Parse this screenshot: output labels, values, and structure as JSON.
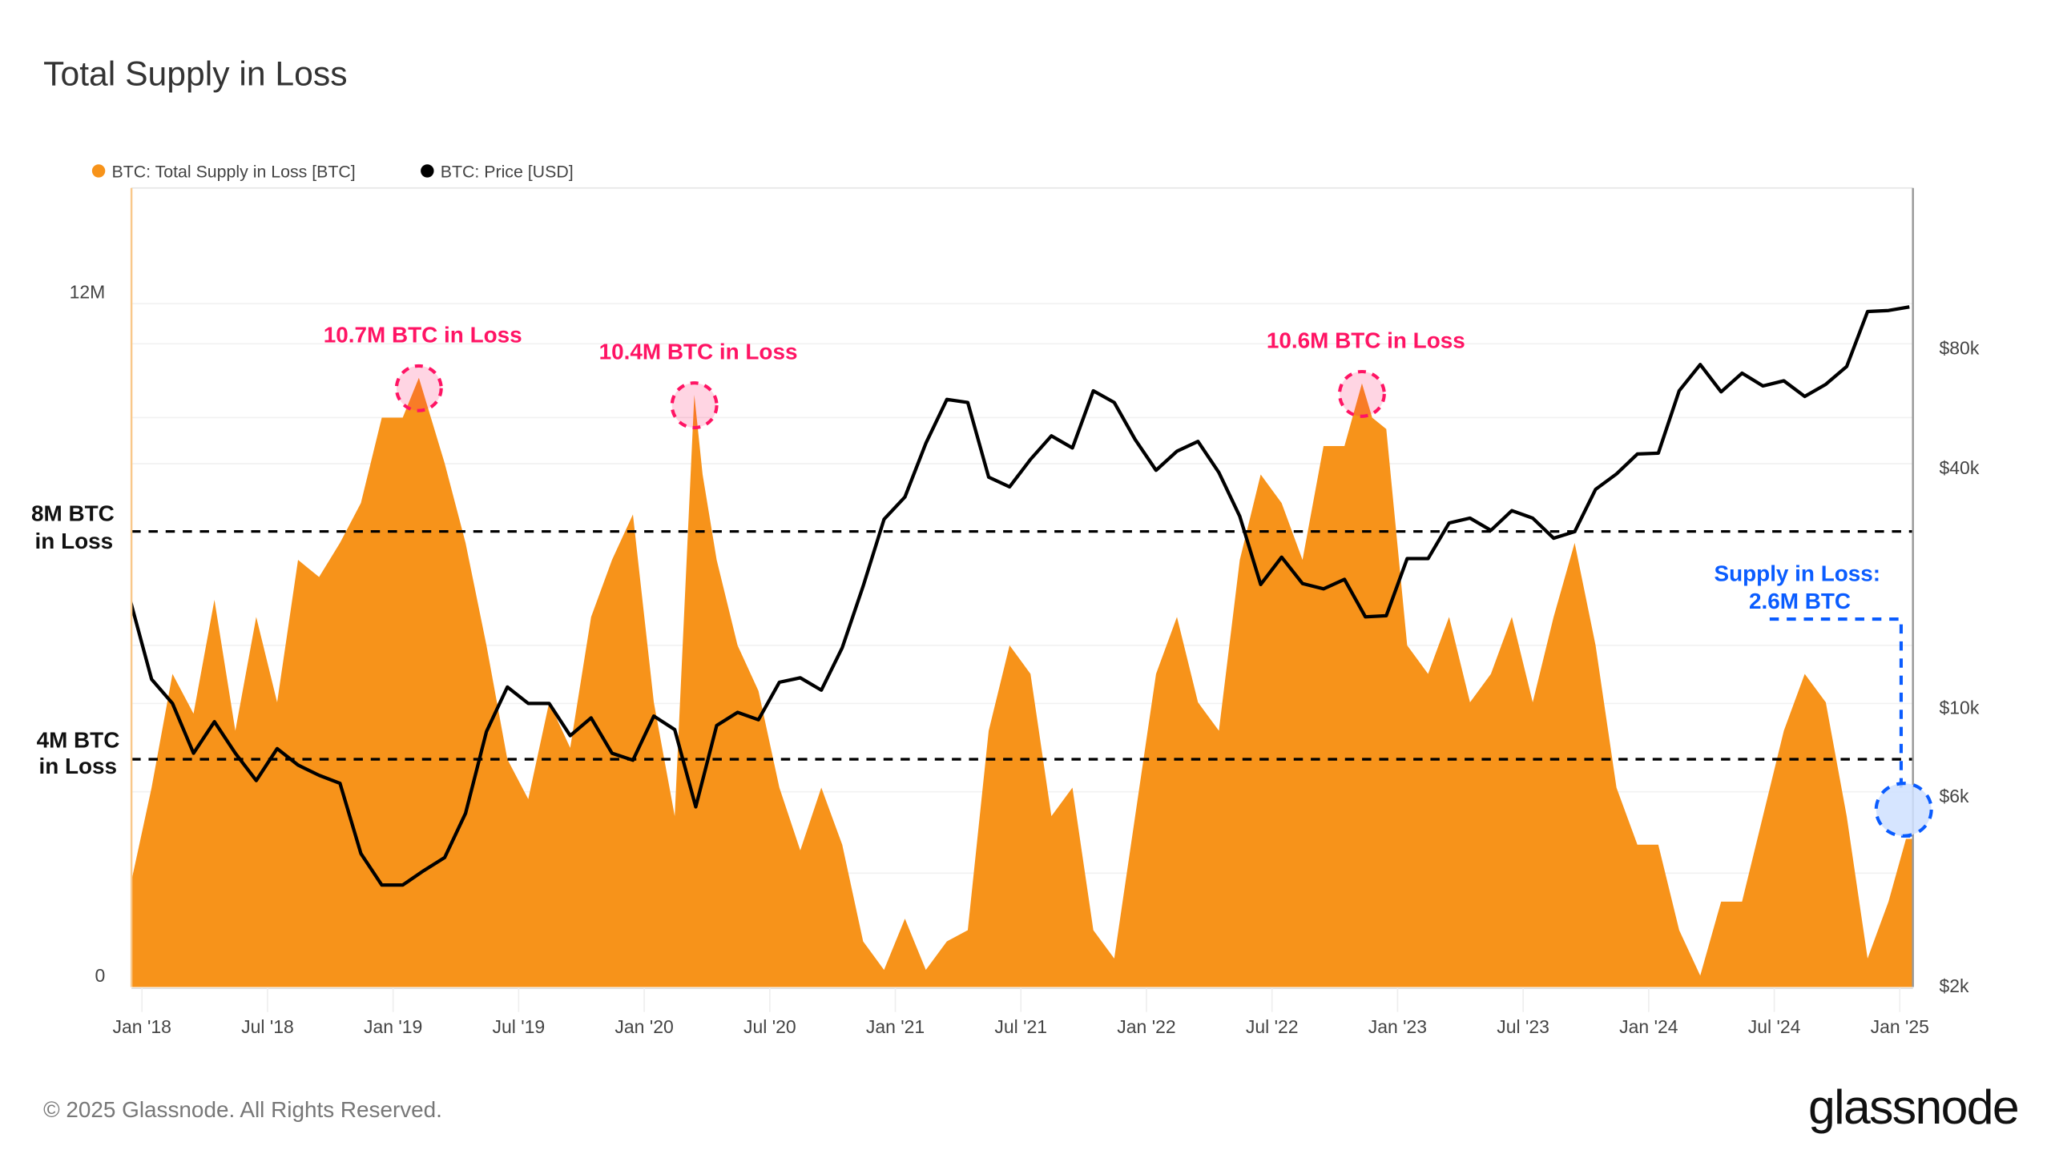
{
  "title": "Total Supply in Loss",
  "legend": [
    {
      "label": "BTC: Total Supply in Loss [BTC]",
      "color": "#f7931a"
    },
    {
      "label": "BTC: Price [USD]",
      "color": "#000000"
    }
  ],
  "annotations": {
    "threshold_8m": {
      "line1": "8M BTC",
      "line2": "in Loss",
      "value": 8
    },
    "threshold_4m": {
      "line1": "4M BTC",
      "line2": "in Loss",
      "value": 4
    },
    "peaks": [
      {
        "label": "10.7M BTC in Loss",
        "date": "2019-02-08",
        "value": 10.7
      },
      {
        "label": "10.4M BTC in Loss",
        "date": "2020-03-13",
        "value": 10.4
      },
      {
        "label": "10.6M BTC in Loss",
        "date": "2022-11-10",
        "value": 10.6
      }
    ],
    "current": {
      "line1": "Supply in Loss:",
      "line2": "2.6M BTC",
      "date": "2025-01-10",
      "value": 2.6
    },
    "pink_color": "#ff1464",
    "blue_color": "#0a5cff"
  },
  "footer": {
    "copyright": "© 2025 Glassnode. All Rights Reserved.",
    "logo": "glassnode"
  },
  "chart_data": {
    "type": "area+line",
    "title": "Total Supply in Loss",
    "x_ticks": [
      "Jan '18",
      "Jul '18",
      "Jan '19",
      "Jul '19",
      "Jan '20",
      "Jul '20",
      "Jan '21",
      "Jul '21",
      "Jan '22",
      "Jul '22",
      "Jan '23",
      "Jul '23",
      "Jan '24",
      "Jul '24",
      "Jan '25"
    ],
    "x_range": [
      "2017-12-15",
      "2025-01-17"
    ],
    "left_axis": {
      "ticks": [
        {
          "label": "12M",
          "value": 12
        },
        {
          "label": "0",
          "value": 0
        }
      ],
      "range": [
        0,
        14
      ],
      "scale": "linear"
    },
    "right_axis": {
      "ticks": [
        {
          "label": "$80k",
          "value": 80000
        },
        {
          "label": "$40k",
          "value": 40000
        },
        {
          "label": "$10k",
          "value": 10000
        },
        {
          "label": "$6k",
          "value": 6000
        },
        {
          "label": "$2k",
          "value": 2000
        }
      ],
      "scale": "log"
    },
    "series": [
      {
        "name": "BTC: Total Supply in Loss [BTC]",
        "axis": "left",
        "unit": "M BTC",
        "color": "#f7931a",
        "points": [
          [
            "2017-12-15",
            1.8
          ],
          [
            "2018-01",
            3.5
          ],
          [
            "2018-02",
            5.5
          ],
          [
            "2018-03",
            4.8
          ],
          [
            "2018-04",
            6.8
          ],
          [
            "2018-05",
            4.5
          ],
          [
            "2018-06",
            6.5
          ],
          [
            "2018-07",
            5.0
          ],
          [
            "2018-08",
            7.5
          ],
          [
            "2018-09",
            7.2
          ],
          [
            "2018-10",
            7.8
          ],
          [
            "2018-11",
            8.5
          ],
          [
            "2018-12",
            10.0
          ],
          [
            "2019-01",
            10.0
          ],
          [
            "2019-02-08",
            10.7
          ],
          [
            "2019-03",
            9.2
          ],
          [
            "2019-04",
            7.8
          ],
          [
            "2019-05",
            6.0
          ],
          [
            "2019-06",
            4.0
          ],
          [
            "2019-07",
            3.3
          ],
          [
            "2019-08",
            5.0
          ],
          [
            "2019-09",
            4.2
          ],
          [
            "2019-10",
            6.5
          ],
          [
            "2019-11",
            7.5
          ],
          [
            "2019-12",
            8.3
          ],
          [
            "2020-01",
            5.0
          ],
          [
            "2020-02",
            3.0
          ],
          [
            "2020-03-13",
            10.4
          ],
          [
            "2020-03-25",
            9.0
          ],
          [
            "2020-04",
            7.5
          ],
          [
            "2020-05",
            6.0
          ],
          [
            "2020-06",
            5.2
          ],
          [
            "2020-07",
            3.5
          ],
          [
            "2020-08",
            2.4
          ],
          [
            "2020-09",
            3.5
          ],
          [
            "2020-10",
            2.5
          ],
          [
            "2020-11",
            0.8
          ],
          [
            "2020-12",
            0.3
          ],
          [
            "2021-01",
            1.2
          ],
          [
            "2021-02",
            0.3
          ],
          [
            "2021-03",
            0.8
          ],
          [
            "2021-04",
            1.0
          ],
          [
            "2021-05",
            4.5
          ],
          [
            "2021-06",
            6.0
          ],
          [
            "2021-07",
            5.5
          ],
          [
            "2021-08",
            3.0
          ],
          [
            "2021-09",
            3.5
          ],
          [
            "2021-10",
            1.0
          ],
          [
            "2021-11",
            0.5
          ],
          [
            "2021-12",
            3.0
          ],
          [
            "2022-01",
            5.5
          ],
          [
            "2022-02",
            6.5
          ],
          [
            "2022-03",
            5.0
          ],
          [
            "2022-04",
            4.5
          ],
          [
            "2022-05",
            7.5
          ],
          [
            "2022-06",
            9.0
          ],
          [
            "2022-07",
            8.5
          ],
          [
            "2022-08",
            7.5
          ],
          [
            "2022-09",
            9.5
          ],
          [
            "2022-10",
            9.5
          ],
          [
            "2022-11-10",
            10.6
          ],
          [
            "2022-11-25",
            10.0
          ],
          [
            "2022-12",
            9.8
          ],
          [
            "2023-01",
            6.0
          ],
          [
            "2023-02",
            5.5
          ],
          [
            "2023-03",
            6.5
          ],
          [
            "2023-04",
            5.0
          ],
          [
            "2023-05",
            5.5
          ],
          [
            "2023-06",
            6.5
          ],
          [
            "2023-07",
            5.0
          ],
          [
            "2023-08",
            6.5
          ],
          [
            "2023-09",
            7.8
          ],
          [
            "2023-10",
            6.0
          ],
          [
            "2023-11",
            3.5
          ],
          [
            "2023-12",
            2.5
          ],
          [
            "2024-01",
            2.5
          ],
          [
            "2024-02",
            1.0
          ],
          [
            "2024-03",
            0.2
          ],
          [
            "2024-04",
            1.5
          ],
          [
            "2024-05",
            1.5
          ],
          [
            "2024-06",
            3.0
          ],
          [
            "2024-07",
            4.5
          ],
          [
            "2024-08",
            5.5
          ],
          [
            "2024-09",
            5.0
          ],
          [
            "2024-10",
            3.0
          ],
          [
            "2024-11",
            0.5
          ],
          [
            "2024-12",
            1.5
          ],
          [
            "2025-01-10",
            2.6
          ]
        ]
      },
      {
        "name": "BTC: Price [USD]",
        "axis": "right",
        "unit": "USD",
        "color": "#000000",
        "points": [
          [
            "2017-12-15",
            18000
          ],
          [
            "2018-01",
            11500
          ],
          [
            "2018-02",
            10000
          ],
          [
            "2018-03",
            7500
          ],
          [
            "2018-04",
            9000
          ],
          [
            "2018-05",
            7500
          ],
          [
            "2018-06",
            6400
          ],
          [
            "2018-07",
            7700
          ],
          [
            "2018-08",
            7000
          ],
          [
            "2018-09",
            6600
          ],
          [
            "2018-10",
            6300
          ],
          [
            "2018-11",
            4200
          ],
          [
            "2018-12",
            3500
          ],
          [
            "2019-01",
            3500
          ],
          [
            "2019-02",
            3800
          ],
          [
            "2019-03",
            4100
          ],
          [
            "2019-04",
            5300
          ],
          [
            "2019-05",
            8500
          ],
          [
            "2019-06",
            11000
          ],
          [
            "2019-07",
            10000
          ],
          [
            "2019-08",
            10000
          ],
          [
            "2019-09",
            8300
          ],
          [
            "2019-10",
            9200
          ],
          [
            "2019-11",
            7500
          ],
          [
            "2019-12",
            7200
          ],
          [
            "2020-01",
            9300
          ],
          [
            "2020-02",
            8600
          ],
          [
            "2020-03",
            5500
          ],
          [
            "2020-04",
            8800
          ],
          [
            "2020-05",
            9500
          ],
          [
            "2020-06",
            9100
          ],
          [
            "2020-07",
            11300
          ],
          [
            "2020-08",
            11600
          ],
          [
            "2020-09",
            10800
          ],
          [
            "2020-10",
            13800
          ],
          [
            "2020-11",
            19700
          ],
          [
            "2020-12",
            29000
          ],
          [
            "2021-01",
            33000
          ],
          [
            "2021-02",
            45000
          ],
          [
            "2021-03",
            58000
          ],
          [
            "2021-04",
            57000
          ],
          [
            "2021-05",
            37000
          ],
          [
            "2021-06",
            35000
          ],
          [
            "2021-07",
            41000
          ],
          [
            "2021-08",
            47000
          ],
          [
            "2021-09",
            43800
          ],
          [
            "2021-10",
            61000
          ],
          [
            "2021-11",
            57000
          ],
          [
            "2021-12",
            46000
          ],
          [
            "2022-01",
            38500
          ],
          [
            "2022-02",
            43000
          ],
          [
            "2022-03",
            45500
          ],
          [
            "2022-04",
            38000
          ],
          [
            "2022-05",
            29500
          ],
          [
            "2022-06",
            19900
          ],
          [
            "2022-07",
            23300
          ],
          [
            "2022-08",
            20000
          ],
          [
            "2022-09",
            19400
          ],
          [
            "2022-10",
            20500
          ],
          [
            "2022-11",
            16500
          ],
          [
            "2022-12",
            16600
          ],
          [
            "2023-01",
            23100
          ],
          [
            "2023-02",
            23100
          ],
          [
            "2023-03",
            28400
          ],
          [
            "2023-04",
            29200
          ],
          [
            "2023-05",
            27200
          ],
          [
            "2023-06",
            30500
          ],
          [
            "2023-07",
            29200
          ],
          [
            "2023-08",
            26000
          ],
          [
            "2023-09",
            27000
          ],
          [
            "2023-10",
            34500
          ],
          [
            "2023-11",
            37700
          ],
          [
            "2023-12",
            42300
          ],
          [
            "2024-01",
            42500
          ],
          [
            "2024-02",
            61000
          ],
          [
            "2024-03",
            71000
          ],
          [
            "2024-04",
            60600
          ],
          [
            "2024-05",
            67500
          ],
          [
            "2024-06",
            62700
          ],
          [
            "2024-07",
            64600
          ],
          [
            "2024-08",
            59000
          ],
          [
            "2024-09",
            63300
          ],
          [
            "2024-10",
            70200
          ],
          [
            "2024-11",
            96400
          ],
          [
            "2024-12",
            97000
          ],
          [
            "2025-01-15",
            99000
          ]
        ]
      }
    ],
    "reference_lines": [
      {
        "axis": "left",
        "value": 8,
        "style": "dashed"
      },
      {
        "axis": "left",
        "value": 4,
        "style": "dashed"
      }
    ],
    "legend_position": "top-left",
    "grid": true
  }
}
